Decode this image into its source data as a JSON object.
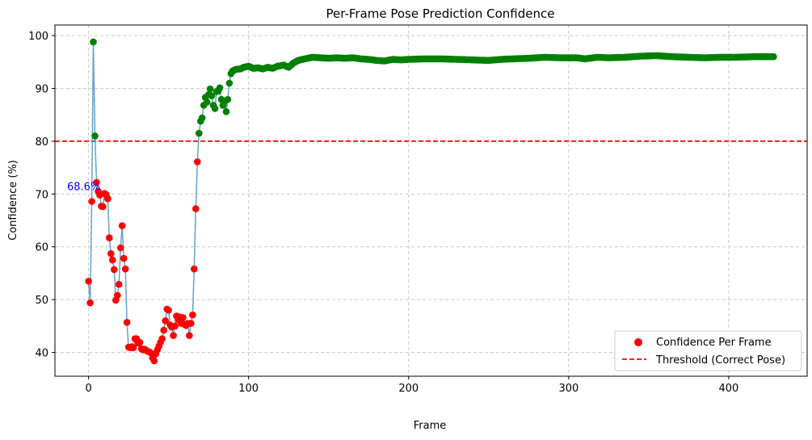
{
  "chart_data": {
    "type": "line",
    "title": "Per-Frame Pose Prediction Confidence",
    "xlabel": "Frame",
    "ylabel": "Confidence (%)",
    "xlim": [
      -21,
      449
    ],
    "ylim": [
      35.5,
      102
    ],
    "xticks": [
      0,
      100,
      200,
      300,
      400
    ],
    "yticks": [
      40,
      50,
      60,
      70,
      80,
      90,
      100
    ],
    "grid": true,
    "threshold": {
      "value": 80,
      "label": "Threshold (Correct Pose)",
      "color": "#ff0000"
    },
    "legend_position": "bottom-right",
    "series": [
      {
        "name": "Confidence Per Frame",
        "below_color": "#ff0000",
        "above_color": "#008000",
        "line_color": "#5b9ec9"
      }
    ],
    "annotation": {
      "text": "68.6%",
      "x": 1,
      "y": 68.6,
      "color": "#0000ff"
    },
    "key_points": [
      [
        0,
        53.5
      ],
      [
        1,
        49.4
      ],
      [
        2,
        68.6
      ],
      [
        3,
        98.8
      ],
      [
        4,
        81
      ],
      [
        5,
        72.2
      ],
      [
        6,
        70.5
      ],
      [
        7,
        69.8
      ],
      [
        8,
        67.7
      ],
      [
        9,
        67.6
      ],
      [
        10,
        70.1
      ],
      [
        11,
        69.9
      ],
      [
        12,
        69.1
      ],
      [
        13,
        61.7
      ],
      [
        14,
        58.7
      ],
      [
        15,
        57.5
      ],
      [
        16,
        55.7
      ],
      [
        17,
        49.9
      ],
      [
        18,
        50.8
      ],
      [
        19,
        52.9
      ],
      [
        20,
        59.8
      ],
      [
        21,
        64.0
      ],
      [
        22,
        57.8
      ],
      [
        23,
        55.8
      ],
      [
        24,
        45.7
      ],
      [
        25,
        41
      ],
      [
        26,
        40.9
      ],
      [
        27,
        41.1
      ],
      [
        28,
        40.9
      ],
      [
        29,
        42.6
      ],
      [
        30,
        42.6
      ],
      [
        31,
        41.8
      ],
      [
        32,
        41.9
      ],
      [
        33,
        40.7
      ],
      [
        34,
        40.5
      ],
      [
        35,
        40.6
      ],
      [
        36,
        40.4
      ],
      [
        37,
        40.2
      ],
      [
        38,
        40.1
      ],
      [
        39,
        39.9
      ],
      [
        40,
        39.0
      ],
      [
        41,
        38.4
      ],
      [
        42,
        39.7
      ],
      [
        43,
        40.5
      ],
      [
        44,
        41.2
      ],
      [
        45,
        41.9
      ],
      [
        46,
        42.6
      ],
      [
        47,
        44.2
      ],
      [
        48,
        46.0
      ],
      [
        49,
        48.2
      ],
      [
        50,
        48.0
      ],
      [
        51,
        45.2
      ],
      [
        52,
        44.8
      ],
      [
        53,
        43.2
      ],
      [
        54,
        45.0
      ],
      [
        55,
        46.9
      ],
      [
        56,
        46.2
      ],
      [
        57,
        46.7
      ],
      [
        58,
        45.5
      ],
      [
        59,
        46.6
      ],
      [
        60,
        45.3
      ],
      [
        61,
        45.1
      ],
      [
        62,
        45.5
      ],
      [
        63,
        43.2
      ],
      [
        64,
        45.5
      ],
      [
        65,
        47.1
      ],
      [
        66,
        55.8
      ],
      [
        67,
        67.2
      ],
      [
        68,
        76.1
      ],
      [
        69,
        81.5
      ],
      [
        70,
        83.8
      ],
      [
        71,
        84.4
      ],
      [
        72,
        86.8
      ],
      [
        73,
        88.3
      ],
      [
        74,
        87.4
      ],
      [
        75,
        88.8
      ],
      [
        76,
        89.9
      ],
      [
        77,
        88.6
      ],
      [
        78,
        86.8
      ],
      [
        79,
        86.2
      ],
      [
        80,
        89.4
      ],
      [
        81,
        89.5
      ],
      [
        82,
        90.1
      ],
      [
        83,
        87.9
      ],
      [
        84,
        86.8
      ],
      [
        85,
        87.6
      ],
      [
        86,
        85.6
      ],
      [
        87,
        87.9
      ],
      [
        88,
        91.0
      ],
      [
        89,
        92.8
      ],
      [
        90,
        93.3
      ],
      [
        92,
        93.6
      ],
      [
        95,
        93.7
      ],
      [
        97,
        94.0
      ],
      [
        100,
        94.2
      ],
      [
        103,
        93.8
      ],
      [
        106,
        93.9
      ],
      [
        109,
        93.7
      ],
      [
        112,
        94.0
      ],
      [
        115,
        93.8
      ],
      [
        118,
        94.2
      ],
      [
        122,
        94.4
      ],
      [
        125,
        94.0
      ],
      [
        128,
        94.8
      ],
      [
        131,
        95.3
      ],
      [
        135,
        95.6
      ],
      [
        140,
        95.9
      ],
      [
        145,
        95.8
      ],
      [
        150,
        95.7
      ],
      [
        155,
        95.8
      ],
      [
        160,
        95.7
      ],
      [
        165,
        95.8
      ],
      [
        170,
        95.6
      ],
      [
        175,
        95.5
      ],
      [
        180,
        95.3
      ],
      [
        185,
        95.2
      ],
      [
        190,
        95.5
      ],
      [
        195,
        95.4
      ],
      [
        200,
        95.5
      ],
      [
        210,
        95.6
      ],
      [
        220,
        95.6
      ],
      [
        230,
        95.5
      ],
      [
        240,
        95.4
      ],
      [
        250,
        95.3
      ],
      [
        258,
        95.5
      ],
      [
        265,
        95.6
      ],
      [
        275,
        95.7
      ],
      [
        285,
        95.9
      ],
      [
        295,
        95.8
      ],
      [
        305,
        95.8
      ],
      [
        310,
        95.6
      ],
      [
        318,
        95.9
      ],
      [
        325,
        95.8
      ],
      [
        335,
        95.9
      ],
      [
        345,
        96.1
      ],
      [
        355,
        96.2
      ],
      [
        365,
        96.0
      ],
      [
        375,
        95.9
      ],
      [
        385,
        95.8
      ],
      [
        395,
        95.9
      ],
      [
        405,
        95.9
      ],
      [
        415,
        96.0
      ],
      [
        428,
        96.0
      ]
    ]
  }
}
